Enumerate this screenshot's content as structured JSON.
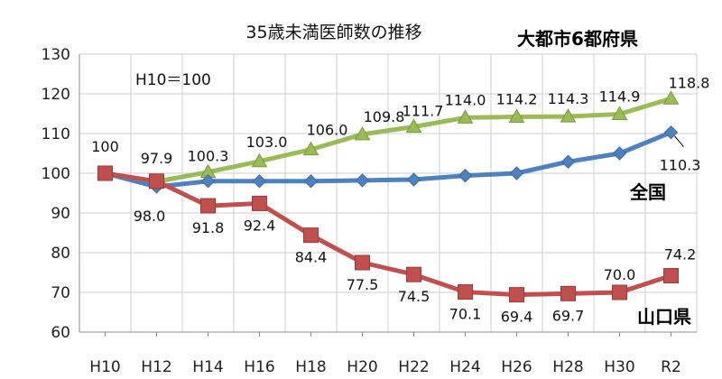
{
  "chart_data": {
    "type": "line",
    "title": "35歳未満医師数の推移",
    "note": "H10＝100",
    "categories": [
      "H10",
      "H12",
      "H14",
      "H16",
      "H18",
      "H20",
      "H22",
      "H24",
      "H26",
      "H28",
      "H30",
      "R2"
    ],
    "ylim": [
      60,
      130
    ],
    "yticks": [
      60,
      70,
      80,
      90,
      100,
      110,
      120,
      130
    ],
    "grid": true,
    "series": [
      {
        "name": "大都市6都府県",
        "color": "#9BBB59",
        "marker": "triangle",
        "values": [
          100,
          97.9,
          100.3,
          103.0,
          106.0,
          109.8,
          111.7,
          114.0,
          114.2,
          114.3,
          114.9,
          118.8
        ],
        "labels": [
          "",
          "97.9",
          "100.3",
          "103.0",
          "106.0",
          "109.8",
          "111.7",
          "114.0",
          "114.2",
          "114.3",
          "114.9",
          "118.8"
        ]
      },
      {
        "name": "全国",
        "color": "#4F81BD",
        "marker": "diamond",
        "values": [
          100,
          96.6,
          98.0,
          98.0,
          98.0,
          98.2,
          98.4,
          99.4,
          100.0,
          102.9,
          105.0,
          110.3
        ],
        "labels": [
          "",
          "",
          "",
          "",
          "",
          "",
          "",
          "",
          "",
          "",
          "",
          "110.3"
        ]
      },
      {
        "name": "山口県",
        "color": "#C0504D",
        "marker": "square",
        "values": [
          100,
          98.0,
          91.8,
          92.4,
          84.4,
          77.5,
          74.5,
          70.1,
          69.4,
          69.7,
          70.0,
          74.2
        ],
        "labels": [
          "100",
          "98.0",
          "91.8",
          "92.4",
          "84.4",
          "77.5",
          "74.5",
          "70.1",
          "69.4",
          "69.7",
          "70.0",
          "74.2"
        ]
      }
    ]
  }
}
